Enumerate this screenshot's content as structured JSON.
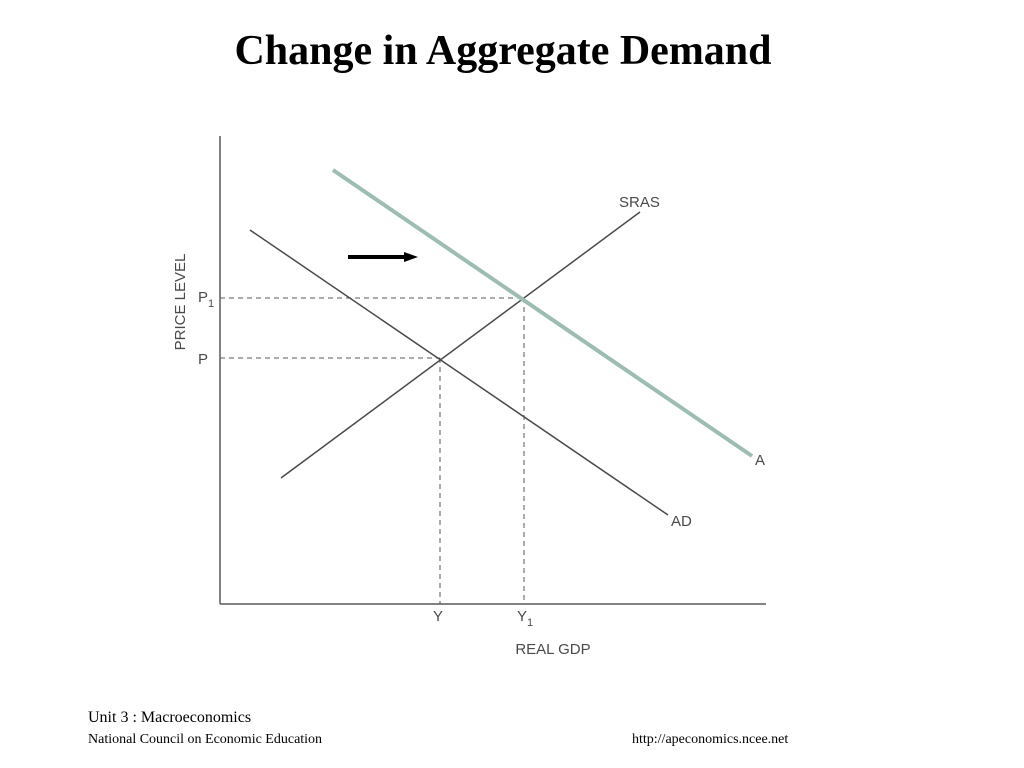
{
  "slide": {
    "title": "Change in Aggregate Demand"
  },
  "diagram": {
    "x_axis_label": "REAL GDP",
    "y_axis_label": "PRICE LEVEL",
    "price_labels": {
      "p": "P",
      "p1_base": "P",
      "p1_sub": "1"
    },
    "output_labels": {
      "y": "Y",
      "y1_base": "Y",
      "y1_sub": "1"
    },
    "curves": {
      "sras": "SRAS",
      "ad": "AD",
      "ad1": "A"
    },
    "colors": {
      "shifted_curve": "#9dbcb4",
      "curve": "#4a4a4a",
      "arrow": "#000000"
    }
  },
  "footer": {
    "unit": "Unit 3 : Macroeconomics",
    "organization": "National Council on Economic Education",
    "url": "http://apeconomics.ncee.net"
  }
}
